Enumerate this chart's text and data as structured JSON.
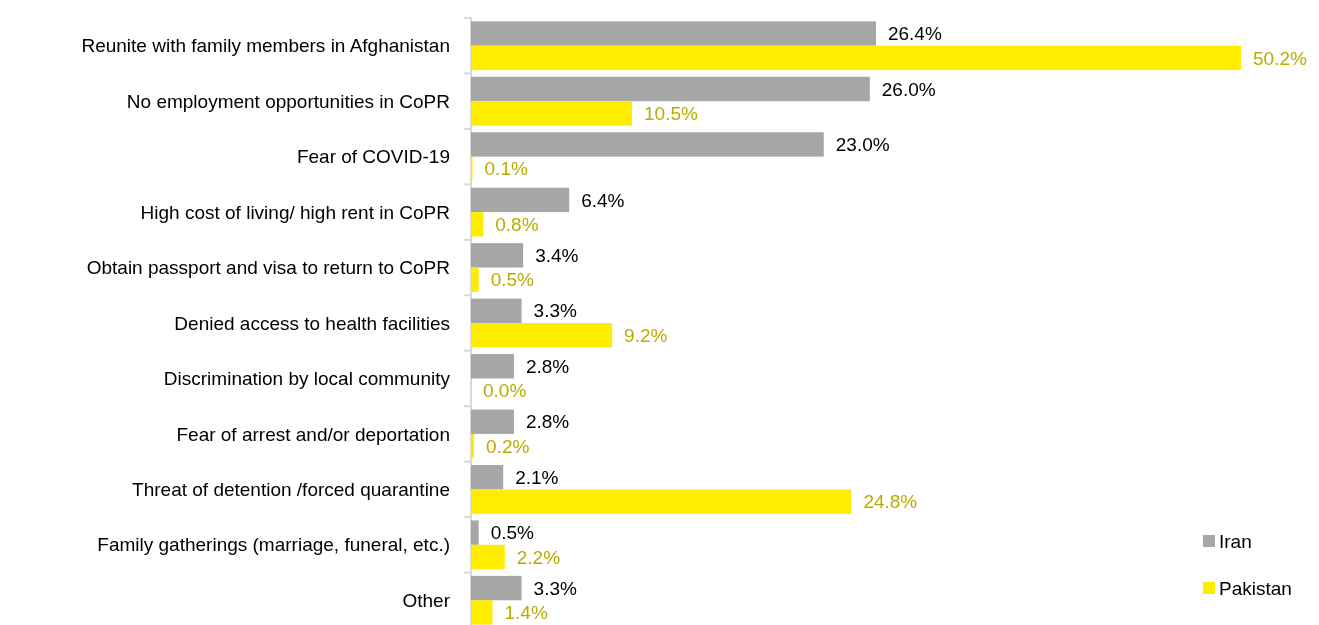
{
  "chart_data": {
    "type": "bar",
    "orientation": "horizontal",
    "legend": "bottom right",
    "categories": [
      "Reunite with family members in Afghanistan",
      "No employment opportunities in CoPR",
      "Fear of COVID-19",
      "High cost of living/ high rent in CoPR",
      "Obtain passport and visa to return to CoPR",
      "Denied access to health facilities",
      "Discrimination by local community",
      "Fear of arrest and/or deportation",
      "Threat of detention /forced quarantine",
      "Family gatherings (marriage, funeral, etc.)",
      "Other"
    ],
    "series": [
      {
        "name": "Iran",
        "color": "#a6a6a6",
        "values": [
          26.4,
          26.0,
          23.0,
          6.4,
          3.4,
          3.3,
          2.8,
          2.8,
          2.1,
          0.5,
          3.3
        ],
        "value_labels": [
          "26.4%",
          "26.0%",
          "23.0%",
          "6.4%",
          "3.4%",
          "3.3%",
          "2.8%",
          "2.8%",
          "2.1%",
          "0.5%",
          "3.3%"
        ]
      },
      {
        "name": "Pakistan",
        "color": "#ffed00",
        "values": [
          50.2,
          10.5,
          0.1,
          0.8,
          0.5,
          9.2,
          0.0,
          0.2,
          24.8,
          2.2,
          1.4
        ],
        "value_labels": [
          "50.2%",
          "10.5%",
          "0.1%",
          "0.8%",
          "0.5%",
          "9.2%",
          "0.0%",
          "0.2%",
          "24.8%",
          "2.2%",
          "1.4%"
        ]
      }
    ]
  }
}
